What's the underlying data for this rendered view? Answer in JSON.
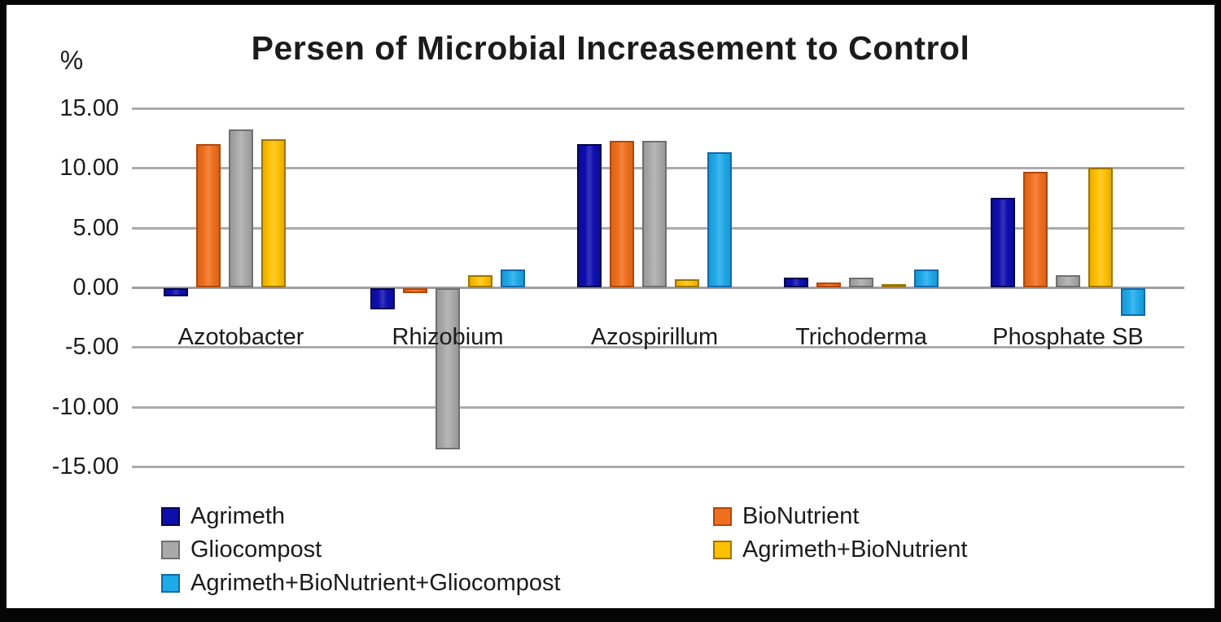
{
  "figure": {
    "background": "#ffffff",
    "border_color": "#060606",
    "gridline_color": "#ababab",
    "text_color": "#1b1b1b"
  },
  "chart_data": {
    "type": "bar",
    "title": "Persen of Microbial Increasement to Control",
    "ylabel": "%",
    "xlabel": "",
    "ylim": [
      -15,
      15
    ],
    "ytick_labels": [
      "15.00",
      "10.00",
      "5.00",
      "0.00",
      "-5.00",
      "-10.00",
      "-15.00"
    ],
    "grid": true,
    "legend_position": "bottom",
    "categories": [
      "Azotobacter",
      "Rhizobium",
      "Azospirillum",
      "Trichoderma",
      "Phosphate SB"
    ],
    "series": [
      {
        "name": "Agrimeth",
        "color": "#0e0eae",
        "border_color": "#03034e",
        "values": [
          -0.7,
          -1.8,
          12.0,
          0.8,
          7.5
        ]
      },
      {
        "name": "BioNutrient",
        "color": "#ef6f1e",
        "border_color": "#b04708",
        "values": [
          12.0,
          -0.4,
          12.3,
          0.4,
          9.7
        ]
      },
      {
        "name": "Gliocompost",
        "color": "#a9a9a9",
        "border_color": "#6f6f6f",
        "values": [
          13.2,
          -13.5,
          12.3,
          0.8,
          1.0
        ]
      },
      {
        "name": "Agrimeth+BioNutrient",
        "color": "#fec002",
        "border_color": "#9b7400",
        "values": [
          12.4,
          1.0,
          0.7,
          0.3,
          10.0
        ]
      },
      {
        "name": "Agrimeth+BioNutrient+Gliocompost",
        "color": "#1ea9e9",
        "border_color": "#1268a8",
        "values": [
          0,
          1.5,
          11.3,
          1.5,
          -2.3
        ]
      }
    ]
  }
}
